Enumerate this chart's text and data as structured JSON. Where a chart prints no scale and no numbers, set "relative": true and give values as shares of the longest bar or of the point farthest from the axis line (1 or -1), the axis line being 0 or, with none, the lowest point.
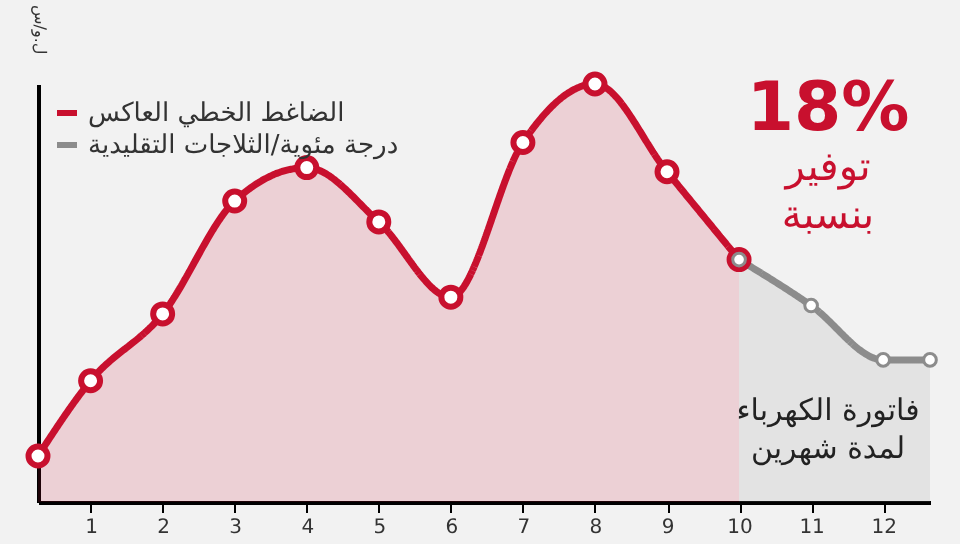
{
  "chart_data": {
    "type": "area",
    "relative": true,
    "ylabel": "ل.و/س",
    "xlim": [
      0.27,
      12.65
    ],
    "xticks": [
      1,
      2,
      3,
      4,
      5,
      6,
      7,
      8,
      9,
      10,
      11,
      12
    ],
    "series": [
      {
        "name": "الضاغط الخطي العاكس",
        "color": "#c8102e",
        "x": [
          0.27,
          1,
          2,
          3,
          4,
          5,
          6,
          7,
          8,
          9,
          10
        ],
        "values": [
          0.11,
          0.29,
          0.45,
          0.72,
          0.8,
          0.67,
          0.49,
          0.86,
          1,
          0.79,
          0.58
        ]
      },
      {
        "name": "درجة مئوية/الثلاجات التقليدية",
        "color": "#8c8c8c",
        "x": [
          10,
          11,
          12,
          12.65
        ],
        "values": [
          0.58,
          0.47,
          0.34,
          0.34
        ]
      }
    ],
    "marker": "circle",
    "grid": false,
    "legend": "top left",
    "annotations": [
      "18%\nتوفير\nبنسبة",
      "فاتورة الكهرباء\nلمدة شهرين"
    ]
  }
}
